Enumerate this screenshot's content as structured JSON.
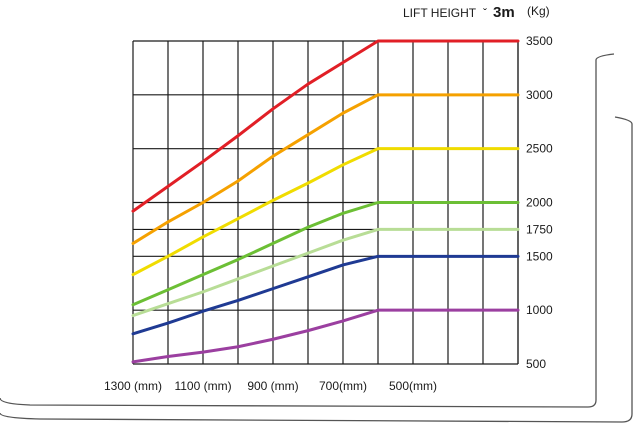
{
  "header": {
    "lift_height_label": "LIFT HEIGHT",
    "lift_height_mark": "ˇ",
    "lift_height_value": "3m",
    "unit_label": "(Kg)"
  },
  "chart_data": {
    "type": "line",
    "title": "",
    "xlabel": "",
    "ylabel": "",
    "x_ticks": [
      "1300 (mm)",
      "1100 (mm)",
      "900 (mm)",
      "700(mm)",
      "500(mm)"
    ],
    "x_tick_values": [
      1300,
      1100,
      900,
      700,
      500
    ],
    "x": [
      1300,
      1200,
      1100,
      1000,
      900,
      800,
      700,
      600,
      500,
      400,
      300,
      200
    ],
    "xlim": [
      1300,
      200
    ],
    "y_ticks": [
      500,
      1000,
      1500,
      1750,
      2000,
      2500,
      3000,
      3500
    ],
    "ylim": [
      500,
      3500
    ],
    "grid": true,
    "series": [
      {
        "capacity": 3500,
        "color": "#e11f26",
        "values": [
          1920,
          2150,
          2380,
          2620,
          2870,
          3100,
          3300,
          3500,
          3500,
          3500,
          3500,
          3500
        ]
      },
      {
        "capacity": 3000,
        "color": "#f5a100",
        "values": [
          1620,
          1820,
          2000,
          2200,
          2430,
          2630,
          2830,
          3000,
          3000,
          3000,
          3000,
          3000
        ]
      },
      {
        "capacity": 2500,
        "color": "#f0dc00",
        "values": [
          1330,
          1500,
          1680,
          1850,
          2020,
          2180,
          2350,
          2500,
          2500,
          2500,
          2500,
          2500
        ]
      },
      {
        "capacity": 2000,
        "color": "#6cbf35",
        "values": [
          1050,
          1190,
          1330,
          1470,
          1620,
          1770,
          1900,
          2000,
          2000,
          2000,
          2000,
          2000
        ]
      },
      {
        "capacity": 1750,
        "color": "#b8dd96",
        "values": [
          950,
          1060,
          1170,
          1290,
          1410,
          1530,
          1650,
          1750,
          1750,
          1750,
          1750,
          1750
        ]
      },
      {
        "capacity": 1500,
        "color": "#1f3a93",
        "values": [
          780,
          880,
          990,
          1090,
          1200,
          1310,
          1420,
          1500,
          1500,
          1500,
          1500,
          1500
        ]
      },
      {
        "capacity": 1000,
        "color": "#9b3fa0",
        "values": [
          520,
          570,
          610,
          660,
          730,
          810,
          900,
          1000,
          1000,
          1000,
          1000,
          1000
        ]
      }
    ]
  }
}
